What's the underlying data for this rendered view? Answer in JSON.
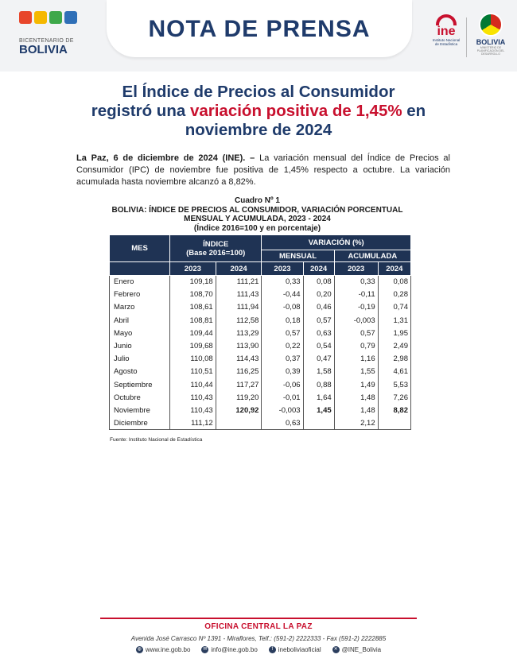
{
  "header": {
    "banner_title": "NOTA DE PRENSA",
    "bicentenario_small": "BICENTENARIO DE",
    "bicentenario_big": "BOLIVIA",
    "ine_logo_text": "ine",
    "ine_logo_sub": "Instituto Nacional de Estadística",
    "bolivia_logo_text": "BOLIVIA",
    "bolivia_logo_sub": "MINISTERIO DE PLANIFICACIÓN DEL DESARROLLO",
    "colors": {
      "brand_navy": "#1f3b6b",
      "brand_red": "#c8102e",
      "table_header": "#1f3354"
    }
  },
  "title": {
    "line1": "El Índice de Precios al Consumidor",
    "line2_pre": "registró una ",
    "line2_highlight": "variación positiva de 1,45%",
    "line2_post": " en",
    "line3": "noviembre de 2024"
  },
  "lead": {
    "dateline": "La Paz, 6 de diciembre de 2024 (INE). –",
    "text": " La variación mensual del Índice de Precios al Consumidor (IPC) de noviembre fue positiva de 1,45% respecto a octubre. La variación acumulada hasta noviembre alcanzó a 8,82%."
  },
  "table_caption": {
    "line1": "Cuadro Nº 1",
    "line2": "BOLIVIA: ÍNDICE DE PRECIOS AL CONSUMIDOR, VARIACIÓN PORCENTUAL",
    "line3": "MENSUAL Y ACUMULADA, 2023 - 2024",
    "line4": "(Índice 2016=100 y en porcentaje)"
  },
  "table": {
    "h_mes": "MES",
    "h_indice": "ÍNDICE",
    "h_indice_base": "(Base 2016=100)",
    "h_variacion": "VARIACIÓN (%)",
    "h_mensual": "MENSUAL",
    "h_acumulada": "ACUMULADA",
    "years": [
      "2023",
      "2024",
      "2023",
      "2024",
      "2023",
      "2024"
    ],
    "rows": [
      [
        "Enero",
        "109,18",
        "111,21",
        "0,33",
        "0,08",
        "0,33",
        "0,08"
      ],
      [
        "Febrero",
        "108,70",
        "111,43",
        "-0,44",
        "0,20",
        "-0,11",
        "0,28"
      ],
      [
        "Marzo",
        "108,61",
        "111,94",
        "-0,08",
        "0,46",
        "-0,19",
        "0,74"
      ],
      [
        "Abril",
        "108,81",
        "112,58",
        "0,18",
        "0,57",
        "-0,003",
        "1,31"
      ],
      [
        "Mayo",
        "109,44",
        "113,29",
        "0,57",
        "0,63",
        "0,57",
        "1,95"
      ],
      [
        "Junio",
        "109,68",
        "113,90",
        "0,22",
        "0,54",
        "0,79",
        "2,49"
      ],
      [
        "Julio",
        "110,08",
        "114,43",
        "0,37",
        "0,47",
        "1,16",
        "2,98"
      ],
      [
        "Agosto",
        "110,51",
        "116,25",
        "0,39",
        "1,58",
        "1,55",
        "4,61"
      ],
      [
        "Septiembre",
        "110,44",
        "117,27",
        "-0,06",
        "0,88",
        "1,49",
        "5,53"
      ],
      [
        "Octubre",
        "110,43",
        "119,20",
        "-0,01",
        "1,64",
        "1,48",
        "7,26"
      ],
      [
        "Noviembre",
        "110,43",
        "120,92",
        "-0,003",
        "1,45",
        "1,48",
        "8,82"
      ],
      [
        "Diciembre",
        "111,12",
        "",
        "0,63",
        "",
        "2,12",
        ""
      ]
    ],
    "fuente": "Fuente: Instituto Nacional de Estadística"
  },
  "footer": {
    "office": "OFICINA CENTRAL LA PAZ",
    "address": "Avenida José Carrasco Nº 1391 - Miraflores, Telf.: (591-2) 2222333 - Fax (591-2) 2222885",
    "web": "www.ine.gob.bo",
    "email": "info@ine.gob.bo",
    "facebook": "ineboliviaoficial",
    "twitter": "@INE_Bolivia"
  }
}
